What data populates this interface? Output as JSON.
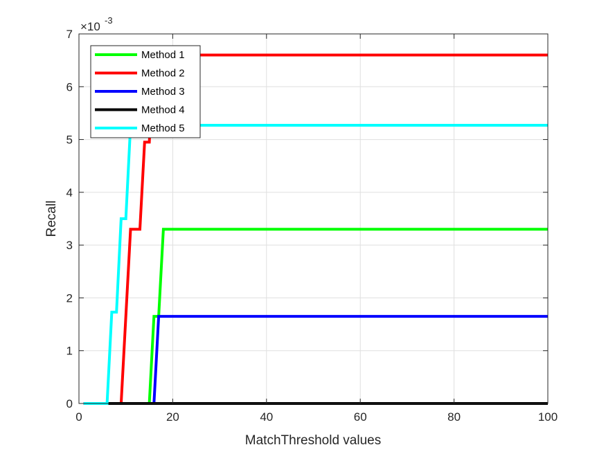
{
  "chart_data": {
    "type": "line",
    "xlabel": "MatchThreshold values",
    "ylabel": "Recall",
    "xlim": [
      0,
      100
    ],
    "ylim": [
      0,
      7
    ],
    "y_multiplier": "×10",
    "y_exponent": "-3",
    "x_ticks": [
      "0",
      "20",
      "40",
      "60",
      "80",
      "100"
    ],
    "y_ticks": [
      "0",
      "1",
      "2",
      "3",
      "4",
      "5",
      "6",
      "7"
    ],
    "grid": true,
    "legend_position": "top-left",
    "series": [
      {
        "name": "Method 1",
        "color": "#00ff00",
        "points": [
          [
            1,
            0
          ],
          [
            15,
            0
          ],
          [
            16,
            1.65
          ],
          [
            17,
            1.65
          ],
          [
            18,
            3.3
          ],
          [
            100,
            3.3
          ]
        ]
      },
      {
        "name": "Method 2",
        "color": "#ff0000",
        "points": [
          [
            1,
            0
          ],
          [
            9,
            0
          ],
          [
            11,
            3.3
          ],
          [
            13,
            3.3
          ],
          [
            14,
            4.95
          ],
          [
            15,
            4.95
          ],
          [
            16,
            6.6
          ],
          [
            100,
            6.6
          ]
        ]
      },
      {
        "name": "Method 3",
        "color": "#0000ff",
        "points": [
          [
            1,
            0
          ],
          [
            16,
            0
          ],
          [
            17,
            1.65
          ],
          [
            100,
            1.65
          ]
        ]
      },
      {
        "name": "Method 4",
        "color": "#000000",
        "points": [
          [
            1,
            0
          ],
          [
            100,
            0
          ]
        ]
      },
      {
        "name": "Method 5",
        "color": "#00ffff",
        "points": [
          [
            1,
            0
          ],
          [
            6,
            0
          ],
          [
            7,
            1.73
          ],
          [
            8,
            1.73
          ],
          [
            9,
            3.5
          ],
          [
            10,
            3.5
          ],
          [
            11,
            5.27
          ],
          [
            100,
            5.27
          ]
        ]
      }
    ]
  }
}
